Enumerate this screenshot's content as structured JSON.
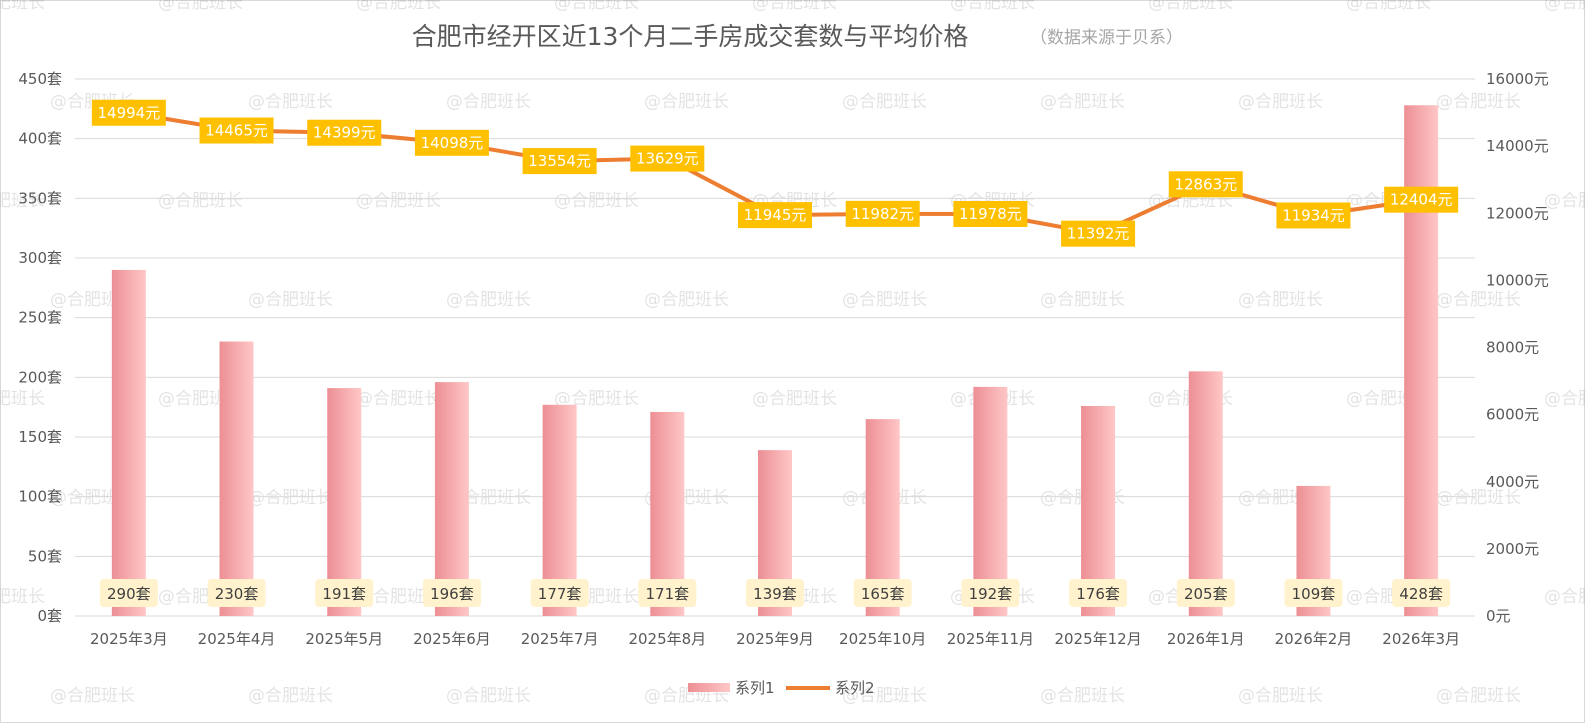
{
  "chart_data": {
    "type": "bar",
    "title": "合肥市经开区近13个月二手房成交套数与平均价格",
    "subtitle": "（数据来源于贝系）",
    "categories": [
      "2025年3月",
      "2025年4月",
      "2025年5月",
      "2025年6月",
      "2025年7月",
      "2025年8月",
      "2025年9月",
      "2025年10月",
      "2025年11月",
      "2025年12月",
      "2026年1月",
      "2026年2月",
      "2026年3月"
    ],
    "series": [
      {
        "name": "系列1",
        "type": "bar",
        "axis": "left",
        "unit": "套",
        "values": [
          290,
          230,
          191,
          196,
          177,
          171,
          139,
          165,
          192,
          176,
          205,
          109,
          428
        ],
        "labels": [
          "290套",
          "230套",
          "191套",
          "196套",
          "177套",
          "171套",
          "139套",
          "165套",
          "192套",
          "176套",
          "205套",
          "109套",
          "428套"
        ]
      },
      {
        "name": "系列2",
        "type": "line",
        "axis": "right",
        "unit": "元",
        "values": [
          14994,
          14465,
          14399,
          14098,
          13554,
          13629,
          11945,
          11982,
          11978,
          11392,
          12863,
          11934,
          12404
        ],
        "labels": [
          "14994元",
          "14465元",
          "14399元",
          "14098元",
          "13554元",
          "13629元",
          "11945元",
          "11982元",
          "11978元",
          "11392元",
          "12863元",
          "11934元",
          "12404元"
        ]
      }
    ],
    "y_left": {
      "min": 0,
      "max": 450,
      "step": 50,
      "tick_labels": [
        "0套",
        "50套",
        "100套",
        "150套",
        "200套",
        "250套",
        "300套",
        "350套",
        "400套",
        "450套"
      ]
    },
    "y_right": {
      "min": 0,
      "max": 16000,
      "step": 2000,
      "tick_labels": [
        "0元",
        "2000元",
        "4000元",
        "6000元",
        "8000元",
        "10000元",
        "12000元",
        "14000元",
        "16000元"
      ]
    },
    "grid": true,
    "legend": {
      "position": "bottom",
      "entries": [
        "系列1",
        "系列2"
      ]
    },
    "colors": {
      "bar_light": "#ffc7c7",
      "bar_dark": "#ec8f94",
      "line": "#ed7d31",
      "line_label_bg": "#ffc000",
      "bar_label_bg": "#fff2cc",
      "grid": "#d9d9d9"
    }
  },
  "watermark": "@合肥班长"
}
